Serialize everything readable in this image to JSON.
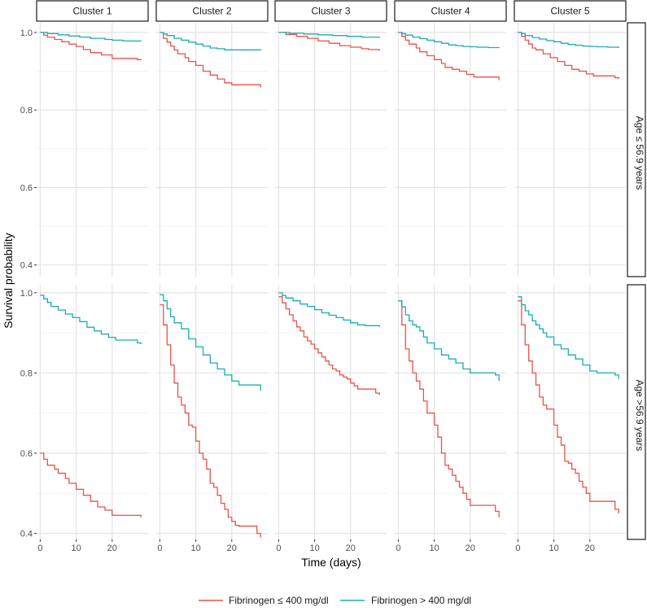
{
  "chart_data": {
    "type": "line",
    "subtype": "kaplan-meier step curves, faceted grid",
    "xlabel": "Time (days)",
    "ylabel": "Survival probability",
    "x_ticks": [
      0,
      10,
      20
    ],
    "xlim": [
      -1,
      30
    ],
    "columns": [
      "Cluster 1",
      "Cluster 2",
      "Cluster 3",
      "Cluster 4",
      "Cluster 5"
    ],
    "rows": [
      {
        "label": "Age ≤ 56.9 years",
        "y_ticks": [
          0.4,
          0.6,
          0.8,
          1.0
        ],
        "y_tick_labels": [
          "0.4",
          "0.6",
          "0.8",
          "1.0"
        ],
        "ylim": [
          0.37,
          1.025
        ]
      },
      {
        "label": "Age >56.9 years",
        "y_ticks": [
          0.4,
          0.6,
          0.8,
          1.0
        ],
        "y_tick_labels": [
          "0.4",
          "0.6",
          "0.8",
          "1.0"
        ],
        "ylim": [
          0.385,
          1.02
        ]
      }
    ],
    "series_meta": [
      {
        "name": "Fibrinogen ≤ 400 mg/dl",
        "color": "#e8534a"
      },
      {
        "name": "Fibrinogen > 400 mg/dl",
        "color": "#1aacb4"
      }
    ],
    "panels": [
      [
        {
          "low": {
            "x": [
              0,
              1,
              2,
              4,
              6,
              8,
              10,
              12,
              14,
              17,
              20,
              23,
              27,
              28
            ],
            "y": [
              1.0,
              0.993,
              0.988,
              0.982,
              0.976,
              0.97,
              0.964,
              0.956,
              0.948,
              0.942,
              0.933,
              0.933,
              0.93,
              0.928
            ]
          },
          "high": {
            "x": [
              0,
              2,
              5,
              8,
              11,
              14,
              18,
              20,
              23,
              28
            ],
            "y": [
              1.0,
              0.997,
              0.994,
              0.991,
              0.988,
              0.985,
              0.982,
              0.98,
              0.978,
              0.977
            ]
          }
        },
        {
          "low": {
            "x": [
              0,
              1,
              2,
              4,
              5,
              7,
              8,
              10,
              12,
              14,
              16,
              18,
              20,
              22,
              24,
              27,
              28
            ],
            "y": [
              0.6,
              0.585,
              0.57,
              0.56,
              0.55,
              0.537,
              0.525,
              0.51,
              0.495,
              0.48,
              0.466,
              0.458,
              0.445,
              0.445,
              0.445,
              0.445,
              0.44
            ]
          },
          "high": {
            "x": [
              0,
              1,
              2,
              3,
              5,
              7,
              9,
              11,
              13,
              15,
              17,
              19,
              21,
              24,
              27,
              28
            ],
            "y": [
              0.994,
              0.985,
              0.976,
              0.966,
              0.957,
              0.947,
              0.938,
              0.928,
              0.914,
              0.905,
              0.897,
              0.889,
              0.882,
              0.882,
              0.875,
              0.872
            ]
          }
        }
      ],
      [
        {
          "low": {
            "x": [
              0,
              1,
              2,
              3,
              4,
              5,
              7,
              8,
              10,
              12,
              14,
              16,
              18,
              20,
              27,
              28
            ],
            "y": [
              1.0,
              0.985,
              0.975,
              0.965,
              0.955,
              0.945,
              0.935,
              0.925,
              0.915,
              0.9,
              0.89,
              0.88,
              0.87,
              0.865,
              0.865,
              0.858
            ]
          },
          "high": {
            "x": [
              0,
              1,
              2,
              4,
              6,
              8,
              10,
              12,
              14,
              16,
              18,
              20,
              22,
              24,
              28
            ],
            "y": [
              1.0,
              0.996,
              0.992,
              0.985,
              0.98,
              0.975,
              0.97,
              0.965,
              0.96,
              0.958,
              0.955,
              0.955,
              0.955,
              0.955,
              0.953
            ]
          }
        },
        {
          "low": {
            "x": [
              0,
              1,
              2,
              3,
              4,
              5,
              6,
              7,
              8,
              9,
              10,
              11,
              12,
              13,
              14,
              15,
              16,
              17,
              18,
              19,
              20,
              21,
              22,
              27,
              28
            ],
            "y": [
              0.97,
              0.92,
              0.87,
              0.82,
              0.775,
              0.74,
              0.72,
              0.7,
              0.67,
              0.665,
              0.63,
              0.6,
              0.585,
              0.56,
              0.525,
              0.515,
              0.495,
              0.475,
              0.46,
              0.44,
              0.43,
              0.42,
              0.418,
              0.4,
              0.39
            ]
          },
          "high": {
            "x": [
              0,
              1,
              2,
              3,
              4,
              6,
              8,
              10,
              12,
              14,
              16,
              18,
              20,
              22,
              27,
              28
            ],
            "y": [
              0.995,
              0.98,
              0.96,
              0.94,
              0.925,
              0.91,
              0.885,
              0.865,
              0.845,
              0.825,
              0.81,
              0.795,
              0.78,
              0.77,
              0.77,
              0.755
            ]
          }
        }
      ],
      [
        {
          "low": {
            "x": [
              0,
              2,
              5,
              8,
              11,
              14,
              17,
              20,
              23,
              25,
              28
            ],
            "y": [
              1.0,
              0.995,
              0.99,
              0.985,
              0.978,
              0.972,
              0.966,
              0.962,
              0.958,
              0.956,
              0.953
            ]
          },
          "high": {
            "x": [
              0,
              3,
              7,
              11,
              15,
              19,
              23,
              28
            ],
            "y": [
              1.0,
              0.998,
              0.996,
              0.994,
              0.992,
              0.99,
              0.988,
              0.986
            ]
          }
        },
        {
          "low": {
            "x": [
              0,
              1,
              2,
              3,
              4,
              5,
              6,
              7,
              8,
              9,
              10,
              11,
              12,
              13,
              14,
              15,
              16,
              17,
              18,
              19,
              20,
              21,
              22,
              27,
              28
            ],
            "y": [
              0.99,
              0.975,
              0.96,
              0.945,
              0.93,
              0.915,
              0.905,
              0.89,
              0.88,
              0.872,
              0.86,
              0.85,
              0.84,
              0.83,
              0.82,
              0.81,
              0.805,
              0.795,
              0.79,
              0.785,
              0.775,
              0.768,
              0.76,
              0.75,
              0.745
            ]
          },
          "high": {
            "x": [
              0,
              1,
              2,
              4,
              6,
              8,
              10,
              12,
              14,
              16,
              18,
              20,
              22,
              24,
              28
            ],
            "y": [
              1.0,
              0.993,
              0.987,
              0.98,
              0.972,
              0.966,
              0.958,
              0.95,
              0.944,
              0.938,
              0.932,
              0.925,
              0.92,
              0.918,
              0.915
            ]
          }
        }
      ],
      [
        {
          "low": {
            "x": [
              0,
              1,
              2,
              3,
              5,
              6,
              8,
              10,
              12,
              13,
              15,
              17,
              19,
              21,
              27,
              28
            ],
            "y": [
              1.0,
              0.99,
              0.98,
              0.97,
              0.96,
              0.95,
              0.94,
              0.93,
              0.92,
              0.91,
              0.905,
              0.9,
              0.892,
              0.885,
              0.885,
              0.877
            ]
          },
          "high": {
            "x": [
              0,
              1,
              2,
              4,
              6,
              8,
              10,
              12,
              14,
              16,
              18,
              20,
              22,
              25,
              28
            ],
            "y": [
              1.0,
              0.997,
              0.993,
              0.988,
              0.984,
              0.98,
              0.976,
              0.972,
              0.968,
              0.966,
              0.964,
              0.963,
              0.962,
              0.961,
              0.96
            ]
          }
        },
        {
          "low": {
            "x": [
              0,
              1,
              2,
              3,
              4,
              5,
              6,
              7,
              8,
              9,
              10,
              11,
              12,
              13,
              14,
              15,
              16,
              17,
              18,
              19,
              20,
              21,
              22,
              27,
              28
            ],
            "y": [
              0.98,
              0.92,
              0.86,
              0.83,
              0.8,
              0.78,
              0.76,
              0.73,
              0.7,
              0.7,
              0.67,
              0.64,
              0.6,
              0.57,
              0.56,
              0.545,
              0.53,
              0.515,
              0.5,
              0.485,
              0.47,
              0.47,
              0.47,
              0.455,
              0.44
            ]
          },
          "high": {
            "x": [
              0,
              1,
              2,
              3,
              4,
              5,
              6,
              7,
              8,
              10,
              12,
              14,
              16,
              18,
              20,
              22,
              24,
              27,
              28
            ],
            "y": [
              0.98,
              0.965,
              0.945,
              0.93,
              0.92,
              0.915,
              0.905,
              0.89,
              0.875,
              0.86,
              0.845,
              0.835,
              0.825,
              0.81,
              0.8,
              0.8,
              0.8,
              0.795,
              0.78
            ]
          }
        }
      ],
      [
        {
          "low": {
            "x": [
              0,
              1,
              2,
              3,
              4,
              5,
              7,
              9,
              11,
              13,
              15,
              17,
              19,
              21,
              27,
              28
            ],
            "y": [
              1.0,
              0.99,
              0.98,
              0.97,
              0.96,
              0.955,
              0.945,
              0.935,
              0.925,
              0.915,
              0.905,
              0.9,
              0.893,
              0.888,
              0.883,
              0.88
            ]
          },
          "high": {
            "x": [
              0,
              1,
              2,
              4,
              6,
              8,
              10,
              12,
              14,
              16,
              18,
              20,
              22,
              25,
              28
            ],
            "y": [
              1.0,
              0.997,
              0.992,
              0.987,
              0.983,
              0.979,
              0.976,
              0.972,
              0.969,
              0.967,
              0.965,
              0.964,
              0.963,
              0.962,
              0.96
            ]
          }
        },
        {
          "low": {
            "x": [
              0,
              1,
              2,
              3,
              4,
              5,
              6,
              7,
              8,
              9,
              10,
              11,
              12,
              13,
              14,
              15,
              16,
              17,
              18,
              19,
              20,
              21,
              22,
              27,
              28
            ],
            "y": [
              0.98,
              0.92,
              0.87,
              0.83,
              0.8,
              0.77,
              0.74,
              0.72,
              0.71,
              0.71,
              0.67,
              0.64,
              0.62,
              0.58,
              0.575,
              0.56,
              0.55,
              0.53,
              0.515,
              0.5,
              0.48,
              0.48,
              0.48,
              0.46,
              0.45
            ]
          },
          "high": {
            "x": [
              0,
              1,
              2,
              3,
              4,
              5,
              6,
              7,
              8,
              10,
              12,
              14,
              16,
              18,
              20,
              22,
              24,
              27,
              28
            ],
            "y": [
              0.99,
              0.97,
              0.955,
              0.945,
              0.93,
              0.92,
              0.91,
              0.9,
              0.89,
              0.87,
              0.86,
              0.845,
              0.835,
              0.82,
              0.805,
              0.8,
              0.8,
              0.795,
              0.785
            ]
          }
        }
      ]
    ]
  }
}
